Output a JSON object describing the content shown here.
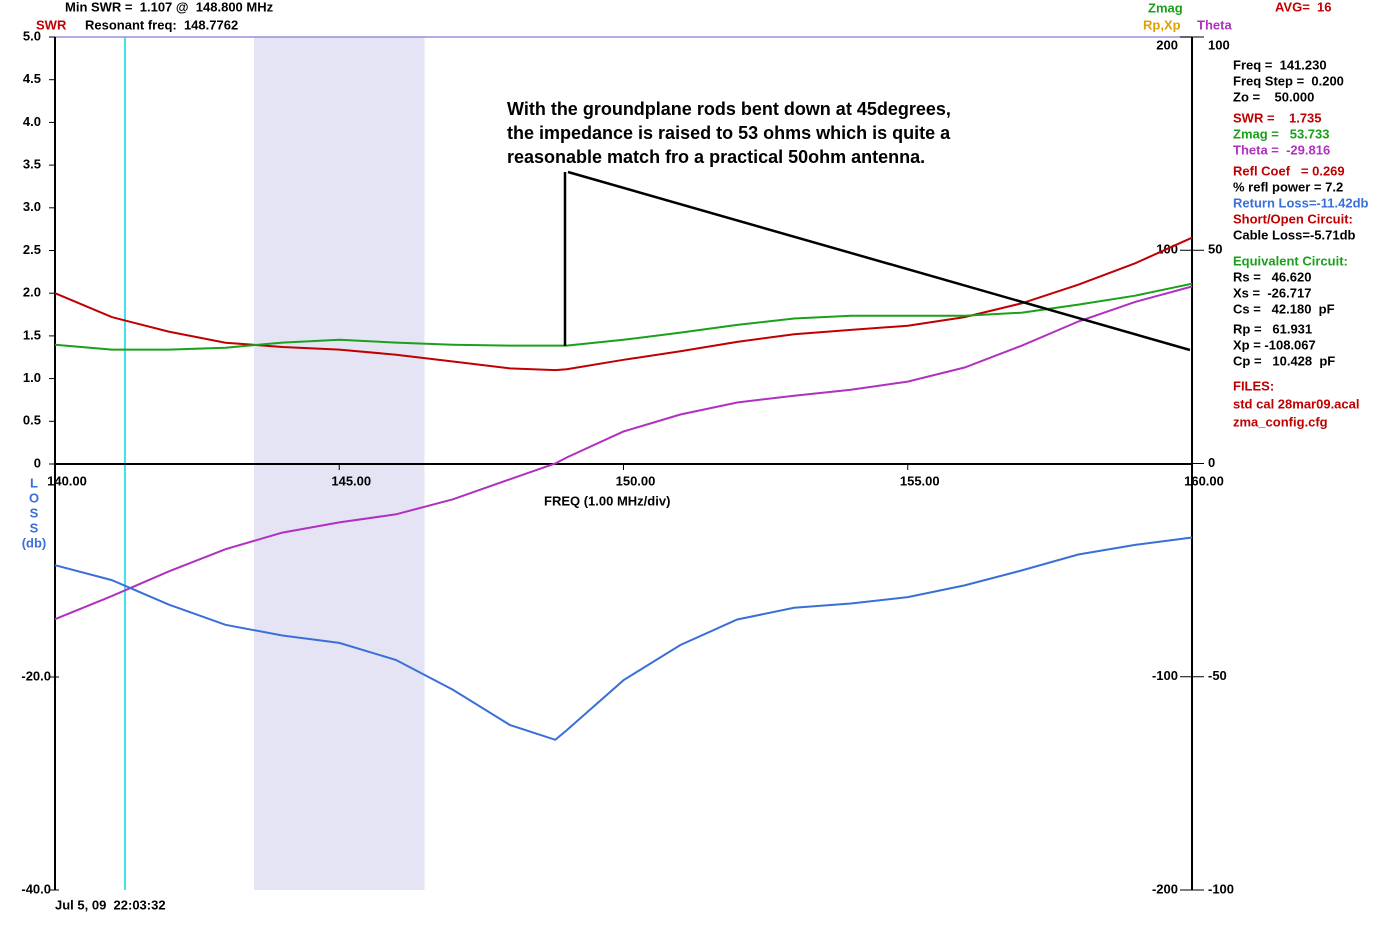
{
  "chart_data": {
    "type": "line",
    "header": [
      "Min SWR =  1.107 @  148.800 MHz",
      "Resonant freq:  148.7762"
    ],
    "avg": "AVG=  16",
    "axis_labels": [
      {
        "text": "SWR",
        "color": "#c00000"
      },
      {
        "text": "Zmag",
        "color": "#1aa01a"
      },
      {
        "text": "Rp,Xp",
        "color": "#e0a000"
      },
      {
        "text": "Theta",
        "color": "#b030c0"
      }
    ],
    "xlabel": "FREQ (1.00 MHz/div)",
    "loss_label": [
      "L",
      "O",
      "S",
      "S",
      "(db)"
    ],
    "loss_color": "#3a6fd8",
    "x": [
      140,
      141,
      142,
      143,
      144,
      145,
      146,
      147,
      148,
      148.8,
      149,
      150,
      151,
      152,
      153,
      154,
      155,
      156,
      157,
      158,
      159,
      160
    ],
    "xlim": [
      140,
      160
    ],
    "xticks": [
      {
        "value": 140,
        "label": "140.00"
      },
      {
        "value": 145,
        "label": "145.00"
      },
      {
        "value": 150,
        "label": "150.00"
      },
      {
        "value": 155,
        "label": "155.00"
      },
      {
        "value": 160,
        "label": "160.00"
      }
    ],
    "ylim": [
      0,
      5
    ],
    "yticks": [
      0,
      0.5,
      {
        "value": 1,
        "label": "1.0"
      },
      1.5,
      {
        "value": 2,
        "label": "2.0"
      },
      2.5,
      {
        "value": 3,
        "label": "3.0"
      },
      3.5,
      {
        "value": 4,
        "label": "4.0"
      },
      4.5,
      {
        "value": 5,
        "label": "5.0"
      }
    ],
    "y2lim": [
      -200,
      200
    ],
    "y2ticks": [
      200,
      100,
      -100,
      -200
    ],
    "y3lim": [
      -40,
      0
    ],
    "y3ticks": [
      {
        "value": -20,
        "label": "-20.0"
      },
      {
        "value": -40,
        "label": "-40.0"
      }
    ],
    "y4lim": [
      -100,
      100
    ],
    "y4ticks": [
      100,
      50,
      0,
      -50,
      -100
    ],
    "series": [
      {
        "name": "SWR",
        "color": "#c00000",
        "axis": "y",
        "values": [
          2.0,
          1.72,
          1.55,
          1.42,
          1.37,
          1.34,
          1.28,
          1.2,
          1.12,
          1.1,
          1.11,
          1.22,
          1.32,
          1.43,
          1.52,
          1.57,
          1.62,
          1.72,
          1.88,
          2.1,
          2.35,
          2.65
        ]
      },
      {
        "name": "Zmag",
        "color": "#1aa01a",
        "axis": "y2",
        "values": [
          55.7,
          53.4,
          53.4,
          54.3,
          56.7,
          58,
          56.7,
          55.7,
          55.3,
          55.3,
          55.3,
          58,
          61.4,
          65,
          68,
          69.3,
          69.3,
          69.3,
          70.7,
          74.5,
          78.7,
          84.3
        ]
      },
      {
        "name": "Theta",
        "color": "#b030c0",
        "axis": "y4",
        "values": [
          -36.5,
          -31.1,
          -25.3,
          -20.1,
          -16.2,
          -13.8,
          -11.9,
          -8.4,
          -3.7,
          0,
          1.4,
          7.5,
          11.5,
          14.3,
          15.9,
          17.3,
          19.2,
          22.5,
          27.6,
          33.3,
          37.9,
          41.5
        ]
      },
      {
        "color": "#3a6fd8",
        "axis": "y3",
        "values": [
          -9.5,
          -10.9,
          -13.2,
          -15.1,
          -16.1,
          -16.8,
          -18.4,
          -21.2,
          -24.5,
          -25.9,
          -25.0,
          -20.3,
          -17.0,
          -14.6,
          -13.5,
          -13.1,
          -12.5,
          -11.4,
          -10.0,
          -8.5,
          -7.6,
          -6.9
        ]
      }
    ],
    "cursor_x": 141.23,
    "highlight_x": [
      143.5,
      146.5
    ],
    "annotation": [
      "With the groundplane rods bent down at 45degrees,",
      "the impedance is raised to 53 ohms which is quite a",
      "reasonable match fro a practical 50ohm antenna."
    ],
    "readout": [
      {
        "text": "Freq =  141.230",
        "color": "#000000"
      },
      {
        "text": "Freq Step =  0.200",
        "color": "#000000"
      },
      {
        "text": "Zo =    50.000",
        "color": "#000000"
      },
      {
        "text": "SWR =    1.735",
        "color": "#c00000"
      },
      {
        "text": "Zmag =   53.733",
        "color": "#1aa01a"
      },
      {
        "text": "Theta =  -29.816",
        "color": "#b030c0"
      },
      {
        "text": "Refl Coef   = 0.269",
        "color": "#c00000"
      },
      {
        "text": "% refl power = 7.2",
        "color": "#000000"
      },
      {
        "text": "Return Loss=-11.42db",
        "color": "#3a6fd8"
      },
      {
        "text": "Short/Open Circuit:",
        "color": "#c00000"
      },
      {
        "text": "Cable Loss=-5.71db",
        "color": "#000000"
      },
      {
        "text": "Equivalent Circuit:",
        "color": "#1aa01a"
      },
      {
        "text": "Rs =   46.620",
        "color": "#000000"
      },
      {
        "text": "Xs =  -26.717",
        "color": "#000000"
      },
      {
        "text": "Cs =   42.180  pF",
        "color": "#000000"
      },
      {
        "text": "Rp =   61.931",
        "color": "#000000"
      },
      {
        "text": "Xp = -108.067",
        "color": "#000000"
      },
      {
        "text": "Cp =   10.428  pF",
        "color": "#000000"
      },
      {
        "text": "FILES:",
        "color": "#c00000"
      },
      {
        "text": "std cal 28mar09.acal",
        "color": "#c00000"
      },
      {
        "text": "zma_config.cfg",
        "color": "#c00000"
      }
    ],
    "timestamp": "Jul 5, 09  22:03:32"
  }
}
